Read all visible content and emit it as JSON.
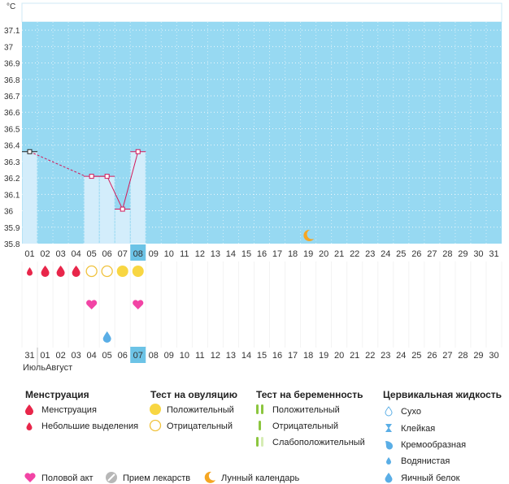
{
  "unit_label": "°C",
  "months": [
    "Июль",
    "Август"
  ],
  "colors": {
    "chart_bg": "#97d9f2",
    "bar_fill": "#d3edfb",
    "line": "#d2195a",
    "highlight": "#6cc3e6",
    "accent": "#f5a623",
    "drop": "#e8264a",
    "heart": "#f244a5",
    "circle_pos": "#f8d642",
    "circle_neg": "#f0c23c",
    "cervical_drop": "#5aaee6"
  },
  "chart_data": {
    "type": "line",
    "ylabel": "°C",
    "yticks": [
      "35.8",
      "35.9",
      "36",
      "36.1",
      "36.2",
      "36.3",
      "36.4",
      "36.5",
      "36.6",
      "36.7",
      "36.8",
      "36.9",
      "37",
      "37.1"
    ],
    "ylim": [
      35.8,
      37.15
    ],
    "x": [
      "01",
      "02",
      "03",
      "04",
      "05",
      "06",
      "07",
      "08",
      "09",
      "10",
      "11",
      "12",
      "13",
      "14",
      "15",
      "16",
      "17",
      "18",
      "19",
      "20",
      "21",
      "22",
      "23",
      "24",
      "25",
      "26",
      "27",
      "28",
      "29",
      "30",
      "31"
    ],
    "points": [
      {
        "day": "01",
        "temp": 36.36
      },
      {
        "day": "05",
        "temp": 36.21
      },
      {
        "day": "06",
        "temp": 36.21
      },
      {
        "day": "07",
        "temp": 36.01
      },
      {
        "day": "08",
        "temp": 36.36
      }
    ],
    "dashed_segment": [
      "01",
      "05"
    ],
    "moon_day": "19",
    "selected_day": "08"
  },
  "cycle_days": [
    {
      "d": "31",
      "red": false
    },
    {
      "d": "01",
      "red": true
    },
    {
      "d": "02",
      "red": true
    },
    {
      "d": "03",
      "red": false
    },
    {
      "d": "04",
      "red": false
    },
    {
      "d": "05",
      "red": false
    },
    {
      "d": "06",
      "red": false
    },
    {
      "d": "07",
      "red": false,
      "selected": true
    },
    {
      "d": "08",
      "red": true
    },
    {
      "d": "09",
      "red": true
    },
    {
      "d": "10",
      "red": false
    },
    {
      "d": "11",
      "red": false
    },
    {
      "d": "12",
      "red": false
    },
    {
      "d": "13",
      "red": false
    },
    {
      "d": "14",
      "red": false
    },
    {
      "d": "15",
      "red": true
    },
    {
      "d": "16",
      "red": true
    },
    {
      "d": "17",
      "red": false
    },
    {
      "d": "18",
      "red": false
    },
    {
      "d": "19",
      "red": false
    },
    {
      "d": "20",
      "red": false
    },
    {
      "d": "21",
      "red": false
    },
    {
      "d": "22",
      "red": true
    },
    {
      "d": "23",
      "red": true
    },
    {
      "d": "24",
      "red": false
    },
    {
      "d": "25",
      "red": false
    },
    {
      "d": "26",
      "red": false
    },
    {
      "d": "27",
      "red": false
    },
    {
      "d": "28",
      "red": false
    },
    {
      "d": "29",
      "red": true
    },
    {
      "d": "30",
      "red": true
    }
  ],
  "markers": {
    "menstruation": [
      {
        "day": "01",
        "kind": "light"
      },
      {
        "day": "02",
        "kind": "full"
      },
      {
        "day": "03",
        "kind": "full"
      },
      {
        "day": "04",
        "kind": "full"
      }
    ],
    "ovulation": [
      {
        "day": "05",
        "kind": "negative"
      },
      {
        "day": "06",
        "kind": "negative"
      },
      {
        "day": "07",
        "kind": "positive"
      },
      {
        "day": "08",
        "kind": "positive"
      }
    ],
    "intercourse": [
      "05",
      "08"
    ],
    "cervical": [
      {
        "day": "06",
        "kind": "egg-white"
      }
    ]
  },
  "legend": {
    "menstruation": {
      "title": "Менструация",
      "items": [
        "Менструация",
        "Небольшие выделения"
      ]
    },
    "ovulation": {
      "title": "Тест на овуляцию",
      "items": [
        "Положительный",
        "Отрицательный"
      ]
    },
    "pregnancy": {
      "title": "Тест на беременность",
      "items": [
        "Положительный",
        "Отрицательный",
        "Слабоположительный"
      ]
    },
    "cervical": {
      "title": "Цервикальная жидкость",
      "items": [
        "Сухо",
        "Клейкая",
        "Кремообразная",
        "Водянистая",
        "Яичный белок"
      ]
    },
    "bottom": [
      "Половой акт",
      "Прием лекарств",
      "Лунный календарь"
    ]
  }
}
